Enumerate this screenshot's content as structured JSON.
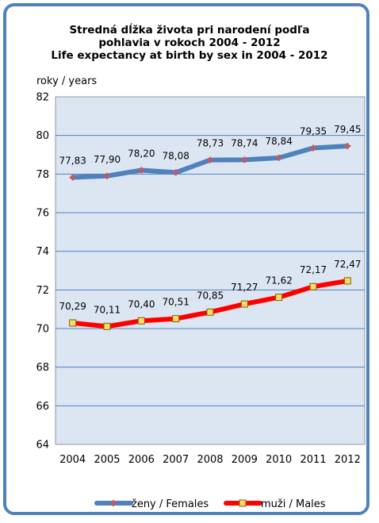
{
  "chart_data": {
    "type": "line",
    "title": "Stredná dĺžka života pri narodení podľa",
    "subtitle": "pohlavia v rokoch 2004 - 2012",
    "title_en": "Life expectancy at birth by sex in 2004 - 2012",
    "ylabel": "roky / years",
    "xlabel": "",
    "ylim": [
      64,
      82
    ],
    "yticks": [
      64,
      66,
      68,
      70,
      72,
      74,
      76,
      78,
      80,
      82
    ],
    "grid": true,
    "legend_position": "bottom",
    "x": [
      "2004",
      "2005",
      "2006",
      "2007",
      "2008",
      "2009",
      "2010",
      "2011",
      "2012"
    ],
    "series": [
      {
        "name": "ženy / Females",
        "color": "#4f81bd",
        "marker_color": "#d9534f",
        "values": [
          77.83,
          77.9,
          78.2,
          78.08,
          78.73,
          78.74,
          78.84,
          79.35,
          79.45
        ],
        "labels": [
          "77,83",
          "77,90",
          "78,20",
          "78,08",
          "78,73",
          "78,74",
          "78,84",
          "79,35",
          "79,45"
        ]
      },
      {
        "name": "muži / Males",
        "color": "#ff0000",
        "marker_color": "#ffd966",
        "values": [
          70.29,
          70.11,
          70.4,
          70.51,
          70.85,
          71.27,
          71.62,
          72.17,
          72.47
        ],
        "labels": [
          "70,29",
          "70,11",
          "70,40",
          "70,51",
          "70,85",
          "71,27",
          "71,62",
          "72,17",
          "72,47"
        ]
      }
    ],
    "colors": {
      "plot_bg": "#dce6f2",
      "grid": "#4f81bd",
      "frame": "#4f81bd"
    }
  }
}
